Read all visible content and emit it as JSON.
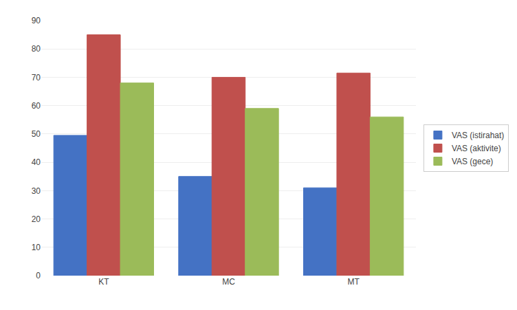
{
  "chart_data": {
    "type": "bar",
    "categories": [
      "KT",
      "MC",
      "MT"
    ],
    "series": [
      {
        "name": "VAS (istirahat)",
        "values": [
          49.5,
          35,
          31
        ],
        "color": "#4472C4"
      },
      {
        "name": "VAS (aktivite)",
        "values": [
          85,
          70,
          71.5
        ],
        "color": "#C0504D"
      },
      {
        "name": "VAS (gece)",
        "values": [
          68,
          59,
          56
        ],
        "color": "#9BBB59"
      }
    ],
    "ylim": [
      0,
      90
    ],
    "yticks": [
      0,
      10,
      20,
      30,
      40,
      50,
      60,
      70,
      80,
      90
    ],
    "grid": true,
    "legend": "right"
  }
}
